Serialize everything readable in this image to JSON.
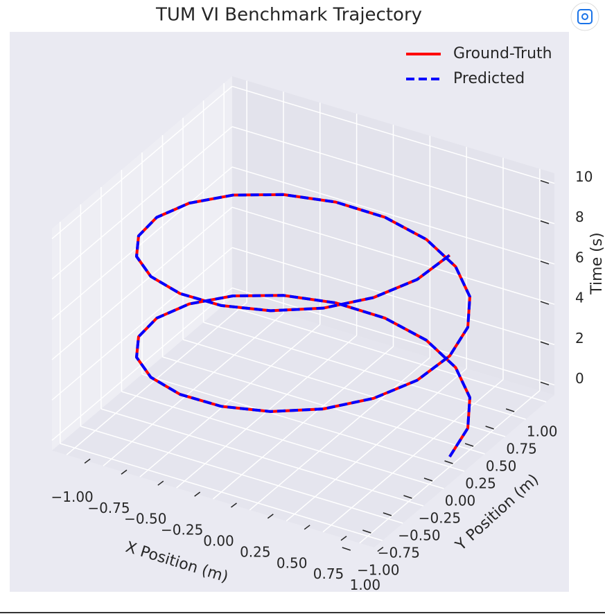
{
  "chart_data": {
    "type": "line3d",
    "title": "TUM VI Benchmark Trajectory",
    "xlabel": "X Position (m)",
    "ylabel": "Y Position (m)",
    "zlabel": "Time (s)",
    "xlim": [
      -1.1,
      1.1
    ],
    "ylim": [
      -1.1,
      1.1
    ],
    "zlim": [
      -0.5,
      10.5
    ],
    "xticks": [
      {
        "value": -1,
        "label": "−1.00"
      },
      {
        "value": -0.75,
        "label": "−0.75"
      },
      {
        "value": -0.5,
        "label": "−0.50"
      },
      {
        "value": -0.25,
        "label": "−0.25"
      },
      {
        "value": 0,
        "label": "0.00"
      },
      {
        "value": 0.25,
        "label": "0.25"
      },
      {
        "value": 0.5,
        "label": "0.50"
      },
      {
        "value": 0.75,
        "label": "0.75"
      },
      {
        "value": 1,
        "label": "1.00"
      }
    ],
    "yticks": [
      {
        "value": -1,
        "label": "−1.00"
      },
      {
        "value": -0.75,
        "label": "−0.75"
      },
      {
        "value": -0.5,
        "label": "−0.50"
      },
      {
        "value": -0.25,
        "label": "−0.25"
      },
      {
        "value": 0,
        "label": "0.00"
      },
      {
        "value": 0.25,
        "label": "0.25"
      },
      {
        "value": 0.5,
        "label": "0.50"
      },
      {
        "value": 0.75,
        "label": "0.75"
      },
      {
        "value": 1,
        "label": "1.00"
      }
    ],
    "zticks": [
      0,
      2,
      4,
      6,
      8,
      10
    ],
    "grid": true,
    "legend": "upper right",
    "series": [
      {
        "name": "Ground-Truth",
        "color": "#ff0000",
        "dash": false,
        "x": [
          1,
          0.951,
          0.809,
          0.588,
          0.309,
          0,
          -0.309,
          -0.588,
          -0.809,
          -0.951,
          -1,
          -0.951,
          -0.809,
          -0.588,
          -0.309,
          0,
          0.309,
          0.588,
          0.809,
          0.951,
          1,
          0.951,
          0.809,
          0.588,
          0.309,
          0,
          -0.309,
          -0.588,
          -0.809,
          -0.951,
          -1,
          -0.951,
          -0.809,
          -0.588,
          -0.309,
          0,
          0.309,
          0.588,
          0.809,
          0.951,
          1
        ],
        "y": [
          0,
          0.309,
          0.588,
          0.809,
          0.951,
          1,
          0.951,
          0.809,
          0.588,
          0.309,
          0,
          -0.309,
          -0.588,
          -0.809,
          -0.951,
          -1,
          -0.951,
          -0.809,
          -0.588,
          -0.309,
          0,
          0.309,
          0.588,
          0.809,
          0.951,
          1,
          0.951,
          0.809,
          0.588,
          0.309,
          0,
          -0.309,
          -0.588,
          -0.809,
          -0.951,
          -1,
          -0.951,
          -0.809,
          -0.588,
          -0.309,
          0
        ],
        "values": [
          0,
          0.25,
          0.5,
          0.75,
          1,
          1.25,
          1.5,
          1.75,
          2,
          2.25,
          2.5,
          2.75,
          3,
          3.25,
          3.5,
          3.75,
          4,
          4.25,
          4.5,
          4.75,
          5,
          5.25,
          5.5,
          5.75,
          6,
          6.25,
          6.5,
          6.75,
          7,
          7.25,
          7.5,
          7.75,
          8,
          8.25,
          8.5,
          8.75,
          9,
          9.25,
          9.5,
          9.75,
          10
        ]
      },
      {
        "name": "Predicted",
        "color": "#0000ff",
        "dash": true,
        "x": [
          1,
          0.951,
          0.809,
          0.588,
          0.309,
          0,
          -0.309,
          -0.588,
          -0.809,
          -0.951,
          -1,
          -0.951,
          -0.809,
          -0.588,
          -0.309,
          0,
          0.309,
          0.588,
          0.809,
          0.951,
          1,
          0.951,
          0.809,
          0.588,
          0.309,
          0,
          -0.309,
          -0.588,
          -0.809,
          -0.951,
          -1,
          -0.951,
          -0.809,
          -0.588,
          -0.309,
          0,
          0.309,
          0.588,
          0.809,
          0.951,
          1
        ],
        "y": [
          0,
          0.309,
          0.588,
          0.809,
          0.951,
          1,
          0.951,
          0.809,
          0.588,
          0.309,
          0,
          -0.309,
          -0.588,
          -0.809,
          -0.951,
          -1,
          -0.951,
          -0.809,
          -0.588,
          -0.309,
          0,
          0.309,
          0.588,
          0.809,
          0.951,
          1,
          0.951,
          0.809,
          0.588,
          0.309,
          0,
          -0.309,
          -0.588,
          -0.809,
          -0.951,
          -1,
          -0.951,
          -0.809,
          -0.588,
          -0.309,
          0
        ],
        "values": [
          0,
          0.25,
          0.5,
          0.75,
          1,
          1.25,
          1.5,
          1.75,
          2,
          2.25,
          2.5,
          2.75,
          3,
          3.25,
          3.5,
          3.75,
          4,
          4.25,
          4.5,
          4.75,
          5,
          5.25,
          5.5,
          5.75,
          6,
          6.25,
          6.5,
          6.75,
          7,
          7.25,
          7.5,
          7.75,
          8,
          8.25,
          8.5,
          8.75,
          9,
          9.25,
          9.5,
          9.75,
          10
        ]
      }
    ]
  }
}
